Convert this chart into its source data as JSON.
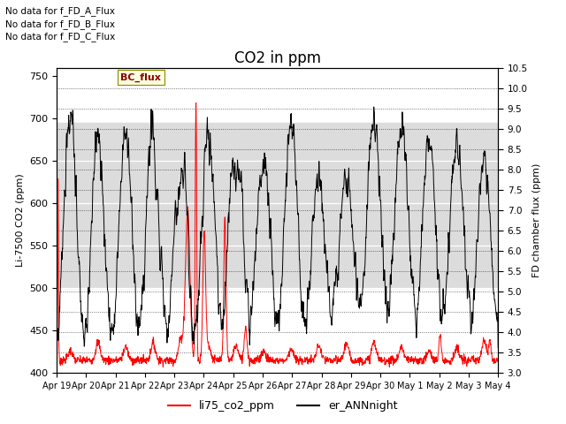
{
  "title": "CO2 in ppm",
  "ylabel_left": "Li-7500 CO2 (ppm)",
  "ylabel_right": "FD chamber flux (ppm)",
  "ylim_left": [
    400,
    760
  ],
  "ylim_right": [
    3.0,
    10.5
  ],
  "yticks_left": [
    400,
    450,
    500,
    550,
    600,
    650,
    700,
    750
  ],
  "yticks_right": [
    3.0,
    3.5,
    4.0,
    4.5,
    5.0,
    5.5,
    6.0,
    6.5,
    7.0,
    7.5,
    8.0,
    8.5,
    9.0,
    9.5,
    10.0,
    10.5
  ],
  "xticklabels": [
    "Apr 19",
    "Apr 20",
    "Apr 21",
    "Apr 22",
    "Apr 23",
    "Apr 24",
    "Apr 25",
    "Apr 26",
    "Apr 27",
    "Apr 28",
    "Apr 29",
    "Apr 30",
    "May 1",
    "May 2",
    "May 3",
    "May 4"
  ],
  "annotations": [
    "No data for f_FD_A_Flux",
    "No data for f_FD_B_Flux",
    "No data for f_FD_C_Flux"
  ],
  "legend_label_box": "BC_flux",
  "legend_entries": [
    "li75_co2_ppm",
    "er_ANNnight"
  ],
  "legend_colors": [
    "#ff0000",
    "#000000"
  ],
  "line_red_color": "#ff0000",
  "line_black_color": "#000000",
  "bg_band_color": "#dcdcdc",
  "title_fontsize": 12
}
